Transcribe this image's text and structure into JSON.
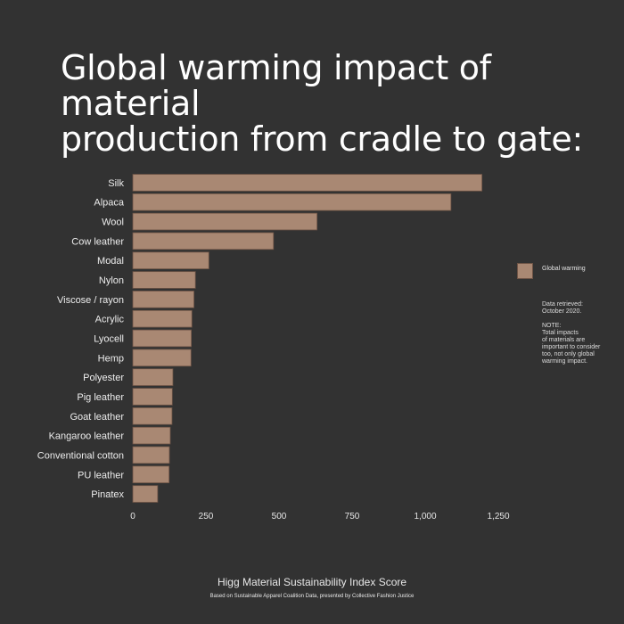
{
  "title": {
    "line1": "Global warming impact of material",
    "line2": "production from cradle to gate:"
  },
  "legend": {
    "label": "Global warming",
    "color": "#a98873"
  },
  "notes": {
    "retrieved_line1": "Data retrieved:",
    "retrieved_line2": "October 2020.",
    "note_line1": "NOTE:",
    "note_line2": "Total impacts",
    "note_line3": "of materials are",
    "note_line4": "important to consider",
    "note_line5": "too, not only global",
    "note_line6": "warming impact."
  },
  "xlabel": "Higg Material Sustainability Index Score",
  "source": "Based on Sustainable Apparel Coalition Data, presented by Collective Fashion Justice",
  "chart_data": {
    "type": "bar",
    "orientation": "horizontal",
    "categories": [
      "Silk",
      "Alpaca",
      "Wool",
      "Cow leather",
      "Modal",
      "Nylon",
      "Viscose / rayon",
      "Acrylic",
      "Lyocell",
      "Hemp",
      "Polyester",
      "Pig leather",
      "Goat leather",
      "Kangaroo leather",
      "Conventional cotton",
      "PU leather",
      "Pinatex"
    ],
    "series": [
      {
        "name": "Global warming",
        "values": [
          1194,
          1088,
          630,
          481,
          260,
          214,
          209,
          202,
          200,
          199,
          137,
          135,
          134,
          128,
          125,
          124,
          85
        ]
      }
    ],
    "xlim": [
      0,
      1250
    ],
    "xticks": [
      0,
      250,
      500,
      750,
      1000,
      1250
    ],
    "xtick_labels": [
      "0",
      "250",
      "500",
      "750",
      "1,000",
      "1,250"
    ],
    "xlabel": "Higg Material Sustainability Index Score",
    "bar_color": "#a98873",
    "bar_edge_color": "#6e5446",
    "grid": false,
    "legend_position": "right"
  }
}
